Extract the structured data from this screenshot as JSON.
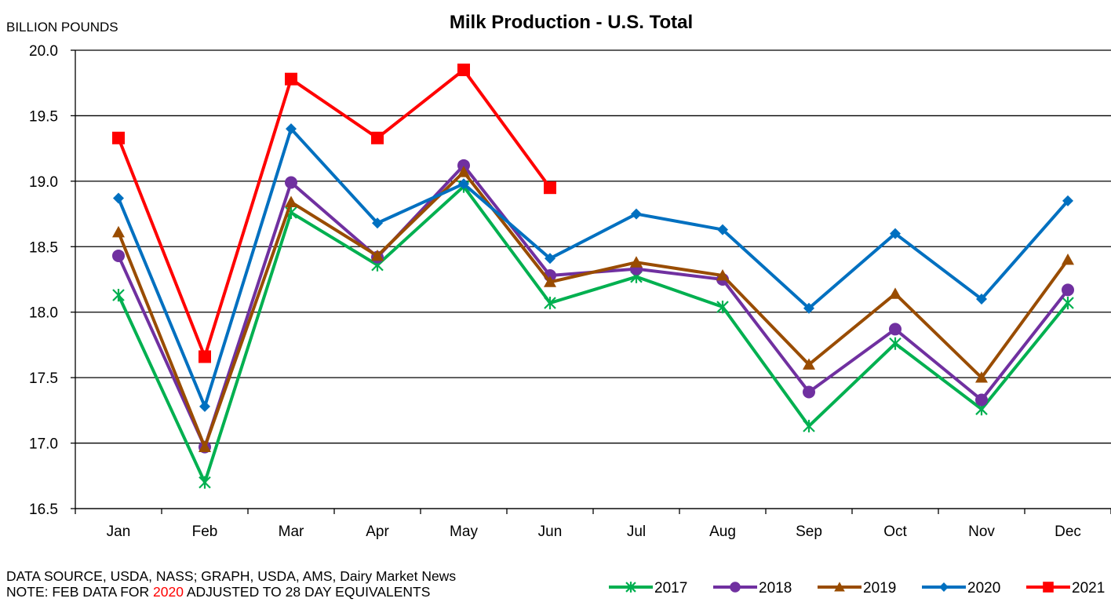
{
  "chart_data": {
    "type": "line",
    "title": "Milk Production - U.S. Total",
    "ylabel": "BILLION POUNDS",
    "xlabel": "",
    "categories": [
      "Jan",
      "Feb",
      "Mar",
      "Apr",
      "May",
      "Jun",
      "Jul",
      "Aug",
      "Sep",
      "Oct",
      "Nov",
      "Dec"
    ],
    "ylim": [
      16.5,
      20.0
    ],
    "yticks": [
      "16.5",
      "17.0",
      "17.5",
      "18.0",
      "18.5",
      "19.0",
      "19.5",
      "20.0"
    ],
    "grid": true,
    "legend_position": "bottom-right",
    "series": [
      {
        "name": "2017",
        "color": "#00b050",
        "marker": "star",
        "values": [
          18.13,
          16.7,
          18.76,
          18.36,
          18.96,
          18.07,
          18.27,
          18.04,
          17.13,
          17.76,
          17.26,
          18.07
        ]
      },
      {
        "name": "2018",
        "color": "#7030a0",
        "marker": "circle",
        "values": [
          18.43,
          16.97,
          18.99,
          18.42,
          19.12,
          18.28,
          18.33,
          18.25,
          17.39,
          17.87,
          17.33,
          18.17
        ]
      },
      {
        "name": "2019",
        "color": "#994c00",
        "marker": "triangle",
        "values": [
          18.61,
          16.97,
          18.84,
          18.43,
          19.07,
          18.23,
          18.38,
          18.28,
          17.6,
          18.14,
          17.5,
          18.4
        ]
      },
      {
        "name": "2020",
        "color": "#0070c0",
        "marker": "diamond",
        "values": [
          18.87,
          17.28,
          19.4,
          18.68,
          18.98,
          18.41,
          18.75,
          18.63,
          18.03,
          18.6,
          18.1,
          18.85
        ]
      },
      {
        "name": "2021",
        "color": "#ff0000",
        "marker": "square",
        "values": [
          19.33,
          17.66,
          19.78,
          19.33,
          19.85,
          18.95,
          null,
          null,
          null,
          null,
          null,
          null
        ]
      }
    ]
  },
  "footer": {
    "source": "DATA SOURCE, USDA, NASS; GRAPH, USDA, AMS, Dairy Market News",
    "note_prefix": "NOTE: FEB DATA FOR ",
    "note_highlight": "2020",
    "note_suffix": " ADJUSTED TO 28 DAY EQUIVALENTS"
  }
}
